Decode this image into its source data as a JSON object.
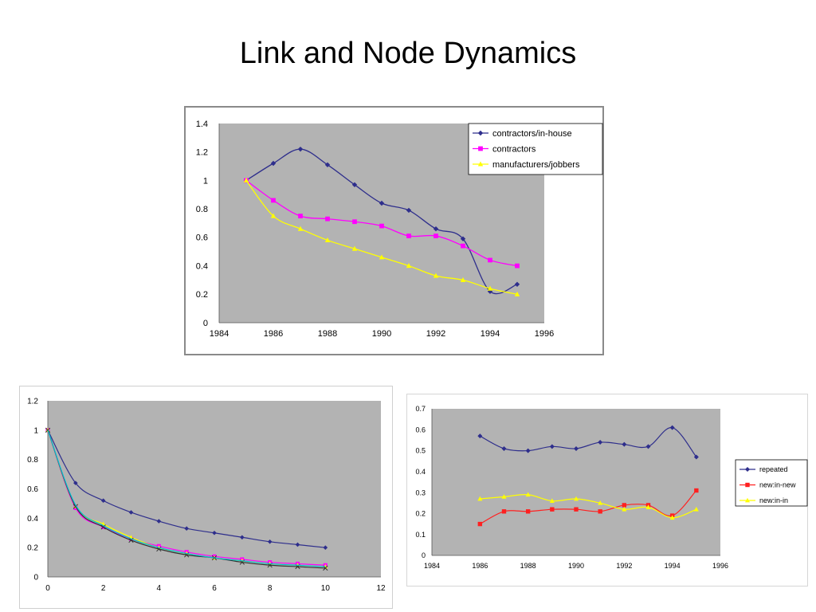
{
  "page": {
    "title": "Link and Node Dynamics"
  },
  "colors": {
    "plot_bg": "#b3b3b3",
    "frame_border": "#8a8a8a"
  },
  "chart_data": [
    {
      "id": "top",
      "type": "line",
      "xlim": [
        1984,
        1996
      ],
      "ylim": [
        0,
        1.4
      ],
      "xticks": [
        1984,
        1986,
        1988,
        1990,
        1992,
        1994,
        1996
      ],
      "yticks": [
        0,
        0.2,
        0.4,
        0.6,
        0.8,
        1,
        1.2,
        1.4
      ],
      "tick_labels_x": [
        "1984",
        "1986",
        "1988",
        "1990",
        "1992",
        "1994",
        "1996"
      ],
      "tick_labels_y": [
        "0",
        "0.2",
        "0.4",
        "0.6",
        "0.8",
        "1",
        "1.2",
        "1.4"
      ],
      "grid": false,
      "legend": "top-right",
      "x": [
        1985,
        1986,
        1987,
        1988,
        1989,
        1990,
        1991,
        1992,
        1993,
        1994,
        1995
      ],
      "series": [
        {
          "name": "contractors/in-house",
          "color": "#2e2e8c",
          "marker": "diamond",
          "values": [
            1.0,
            1.12,
            1.22,
            1.11,
            0.97,
            0.84,
            0.79,
            0.66,
            0.59,
            0.22,
            0.27
          ]
        },
        {
          "name": "contractors",
          "color": "#ff00ff",
          "marker": "square",
          "values": [
            1.0,
            0.86,
            0.75,
            0.73,
            0.71,
            0.68,
            0.61,
            0.61,
            0.54,
            0.44,
            0.4
          ]
        },
        {
          "name": "manufacturers/jobbers",
          "color": "#ffff00",
          "marker": "triangle",
          "values": [
            1.0,
            0.75,
            0.66,
            0.58,
            0.52,
            0.46,
            0.4,
            0.33,
            0.3,
            0.24,
            0.2
          ]
        }
      ]
    },
    {
      "id": "bottom-left",
      "type": "line",
      "xlim": [
        0,
        12
      ],
      "ylim": [
        0,
        1.2
      ],
      "xticks": [
        0,
        2,
        4,
        6,
        8,
        10,
        12
      ],
      "yticks": [
        0,
        0.2,
        0.4,
        0.6,
        0.8,
        1,
        1.2
      ],
      "tick_labels_x": [
        "0",
        "2",
        "4",
        "6",
        "8",
        "10",
        "12"
      ],
      "tick_labels_y": [
        "0",
        "0.2",
        "0.4",
        "0.6",
        "0.8",
        "1",
        "1.2"
      ],
      "grid": false,
      "legend": "none",
      "x": [
        0,
        1,
        2,
        3,
        4,
        5,
        6,
        7,
        8,
        9,
        10
      ],
      "series": [
        {
          "color": "#2e2e8c",
          "marker": "diamond",
          "values": [
            1.0,
            0.64,
            0.52,
            0.44,
            0.38,
            0.33,
            0.3,
            0.27,
            0.24,
            0.22,
            0.2
          ]
        },
        {
          "color": "#ff00ff",
          "marker": "square",
          "values": [
            1.0,
            0.47,
            0.34,
            0.26,
            0.21,
            0.17,
            0.14,
            0.12,
            0.1,
            0.09,
            0.08
          ]
        },
        {
          "color": "#ffff00",
          "marker": "triangle",
          "values": [
            1.0,
            0.48,
            0.36,
            0.27,
            0.2,
            0.16,
            0.13,
            0.11,
            0.09,
            0.08,
            0.07
          ]
        },
        {
          "color": "#333333",
          "marker": "x",
          "values": [
            1.0,
            0.48,
            0.34,
            0.25,
            0.19,
            0.15,
            0.13,
            0.1,
            0.08,
            0.07,
            0.06
          ]
        },
        {
          "color": "#00bcd4",
          "marker": "none",
          "values": [
            1.0,
            0.49,
            0.35,
            0.26,
            0.2,
            0.16,
            0.13,
            0.11,
            0.09,
            0.08,
            0.07
          ]
        }
      ]
    },
    {
      "id": "bottom-right",
      "type": "line",
      "xlim": [
        1984,
        1996
      ],
      "ylim": [
        0,
        0.7
      ],
      "xticks": [
        1984,
        1986,
        1988,
        1990,
        1992,
        1994,
        1996
      ],
      "yticks": [
        0,
        0.1,
        0.2,
        0.3,
        0.4,
        0.5,
        0.6,
        0.7
      ],
      "tick_labels_x": [
        "1984",
        "1986",
        "1988",
        "1990",
        "1992",
        "1994",
        "1996"
      ],
      "tick_labels_y": [
        "0",
        "0.1",
        "0.2",
        "0.3",
        "0.4",
        "0.5",
        "0.6",
        "0.7"
      ],
      "grid": false,
      "legend": "right",
      "x": [
        1986,
        1987,
        1988,
        1989,
        1990,
        1991,
        1992,
        1993,
        1994,
        1995
      ],
      "series": [
        {
          "name": "repeated",
          "color": "#2e2e8c",
          "marker": "diamond",
          "values": [
            0.57,
            0.51,
            0.5,
            0.52,
            0.51,
            0.54,
            0.53,
            0.52,
            0.61,
            0.47
          ]
        },
        {
          "name": "new:in-new",
          "color": "#ff2020",
          "marker": "square",
          "values": [
            0.15,
            0.21,
            0.21,
            0.22,
            0.22,
            0.21,
            0.24,
            0.24,
            0.19,
            0.31
          ]
        },
        {
          "name": "new:in-in",
          "color": "#ffff00",
          "marker": "triangle",
          "values": [
            0.27,
            0.28,
            0.29,
            0.26,
            0.27,
            0.25,
            0.22,
            0.23,
            0.18,
            0.22
          ]
        }
      ]
    }
  ]
}
